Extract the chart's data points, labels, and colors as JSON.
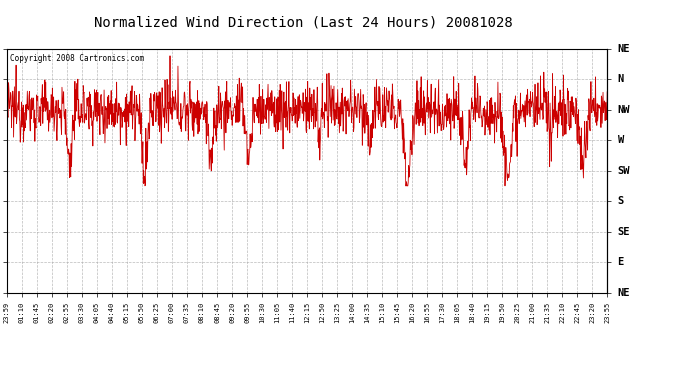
{
  "title": "Normalized Wind Direction (Last 24 Hours) 20081028",
  "copyright": "Copyright 2008 Cartronics.com",
  "line_color": "#cc0000",
  "background_color": "#ffffff",
  "plot_bg_color": "#ffffff",
  "grid_color": "#aaaaaa",
  "title_fontsize": 10,
  "ytick_labels": [
    "NE",
    "N",
    "NW",
    "W",
    "SW",
    "S",
    "SE",
    "E",
    "NE"
  ],
  "ytick_values": [
    8,
    7,
    6,
    5,
    4,
    3,
    2,
    1,
    0
  ],
  "ylim": [
    0,
    8
  ],
  "xtick_labels": [
    "23:59",
    "01:10",
    "01:45",
    "02:20",
    "02:55",
    "03:30",
    "04:05",
    "04:40",
    "05:15",
    "05:50",
    "06:25",
    "07:00",
    "07:35",
    "08:10",
    "08:45",
    "09:20",
    "09:55",
    "10:30",
    "11:05",
    "11:40",
    "12:15",
    "12:50",
    "13:25",
    "14:00",
    "14:35",
    "15:10",
    "15:45",
    "16:20",
    "16:55",
    "17:30",
    "18:05",
    "18:40",
    "19:15",
    "19:50",
    "20:25",
    "21:00",
    "21:35",
    "22:10",
    "22:45",
    "23:20",
    "23:55"
  ],
  "mean_value": 6.0,
  "noise_scale": 0.45,
  "num_points": 1440
}
